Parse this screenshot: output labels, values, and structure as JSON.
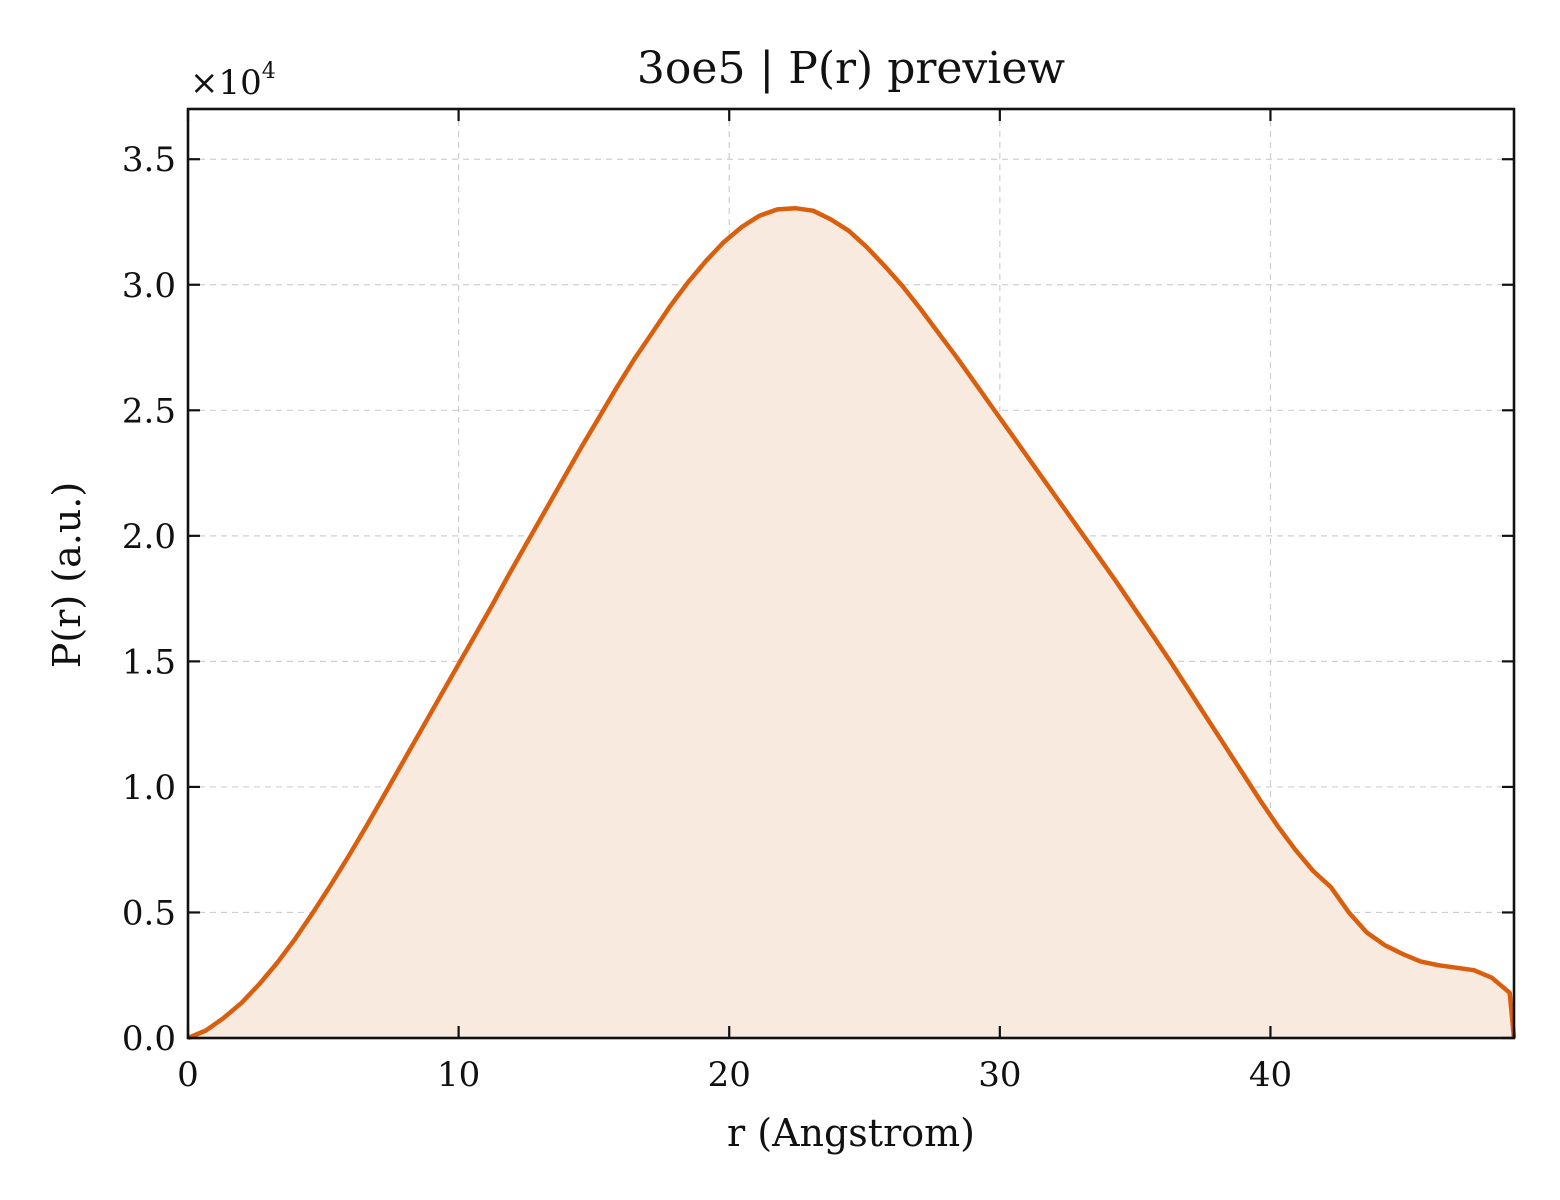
{
  "chart_data": {
    "type": "area",
    "title": "3oe5 | P(r) preview",
    "xlabel": "r (Angstrom)",
    "ylabel": "P(r) (a.u.)",
    "y_multiplier_text": "×10",
    "y_multiplier_exp": "4",
    "xlim": [
      0,
      49
    ],
    "ylim": [
      0,
      3.7
    ],
    "x_ticks": [
      0,
      10,
      20,
      30,
      40
    ],
    "x_tick_labels": [
      "0",
      "10",
      "20",
      "30",
      "40"
    ],
    "y_ticks": [
      0,
      0.5,
      1.0,
      1.5,
      2.0,
      2.5,
      3.0,
      3.5
    ],
    "y_tick_labels": [
      "0.0",
      "0.5",
      "1.0",
      "1.5",
      "2.0",
      "2.5",
      "3.0",
      "3.5"
    ],
    "grid": true,
    "line_color": "#d95f0e",
    "fill_color": "#f9eadf",
    "series": [
      {
        "x": [
          0,
          0.66,
          1.32,
          1.98,
          2.64,
          3.3,
          3.96,
          4.62,
          5.28,
          5.94,
          6.6,
          7.26,
          7.92,
          8.58,
          9.24,
          9.9,
          10.56,
          11.22,
          11.88,
          12.54,
          13.2,
          13.86,
          14.52,
          15.18,
          15.84,
          16.5,
          17.16,
          17.82,
          18.48,
          19.14,
          19.8,
          20.46,
          21.12,
          21.78,
          22.44,
          23.1,
          23.76,
          24.42,
          25.08,
          25.74,
          26.4,
          27.06,
          27.72,
          28.38,
          29.04,
          29.7,
          30.36,
          31.02,
          31.68,
          32.34,
          33.0,
          33.66,
          34.32,
          34.98,
          35.64,
          36.3,
          36.96,
          37.62,
          38.28,
          38.94,
          39.6,
          40.26,
          40.92,
          41.58,
          42.24,
          42.9,
          43.56,
          44.22,
          44.88,
          45.54,
          46.2,
          46.86,
          47.52,
          48.18,
          48.84,
          49.0
        ],
        "y": [
          0,
          0.03,
          0.08,
          0.14,
          0.215,
          0.3,
          0.395,
          0.5,
          0.61,
          0.725,
          0.845,
          0.97,
          1.095,
          1.22,
          1.345,
          1.47,
          1.595,
          1.72,
          1.85,
          1.975,
          2.1,
          2.225,
          2.35,
          2.47,
          2.59,
          2.705,
          2.81,
          2.915,
          3.01,
          3.095,
          3.17,
          3.23,
          3.275,
          3.3,
          3.305,
          3.295,
          3.26,
          3.215,
          3.15,
          3.075,
          2.995,
          2.905,
          2.81,
          2.715,
          2.615,
          2.515,
          2.415,
          2.315,
          2.215,
          2.115,
          2.015,
          1.915,
          1.815,
          1.71,
          1.605,
          1.5,
          1.39,
          1.28,
          1.17,
          1.06,
          0.95,
          0.845,
          0.75,
          0.665,
          0.6,
          0.5,
          0.42,
          0.37,
          0.335,
          0.305,
          0.29,
          0.28,
          0.27,
          0.24,
          0.18,
          0.0
        ]
      }
    ]
  }
}
